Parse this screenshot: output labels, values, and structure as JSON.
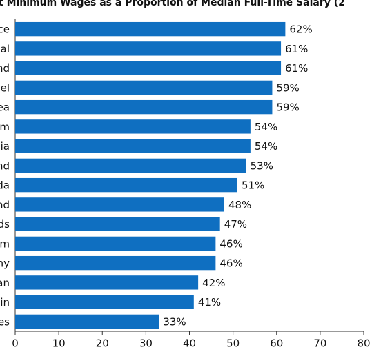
{
  "chart_data": {
    "type": "bar",
    "orientation": "horizontal",
    "title": "t Minimum Wages as a Proportion of Median Full-Time Salary (2",
    "categories": [
      "ce",
      "al",
      "nd",
      "el",
      "ea",
      "m",
      "ia",
      "nd",
      "da",
      "nd",
      "ds",
      "m",
      "ny",
      "an",
      "in",
      "es"
    ],
    "values": [
      62,
      61,
      61,
      59,
      59,
      54,
      54,
      53,
      51,
      48,
      47,
      46,
      46,
      42,
      41,
      33
    ],
    "value_labels": [
      "62%",
      "61%",
      "61%",
      "59%",
      "59%",
      "54%",
      "54%",
      "53%",
      "51%",
      "48%",
      "47%",
      "46%",
      "46%",
      "42%",
      "41%",
      "33%"
    ],
    "color": "#0f6fc1",
    "xlim": [
      0,
      80
    ],
    "xticks": [
      0,
      10,
      20,
      30,
      40,
      50,
      60,
      70,
      80
    ],
    "grid": false
  }
}
